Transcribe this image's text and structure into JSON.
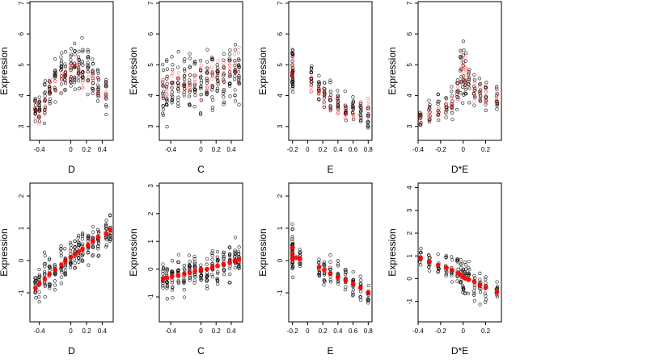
{
  "chart_data": [
    {
      "type": "scatter",
      "xlabel": "D",
      "ylabel": "Expression",
      "xlim": [
        -0.52,
        0.54
      ],
      "ylim": [
        2.55,
        7.05
      ],
      "xticks": [
        -0.4,
        0.0,
        0.2,
        0.4
      ],
      "yticks": [
        3,
        4,
        5,
        6,
        7
      ],
      "x_groups": [
        -0.45,
        -0.4,
        -0.33,
        -0.27,
        -0.2,
        -0.12,
        -0.07,
        0.0,
        0.05,
        0.1,
        0.15,
        0.22,
        0.28,
        0.35,
        0.45
      ],
      "series": [
        {
          "name": "",
          "color": "#000000",
          "marker": "open-circle",
          "cloud": {
            "y_center": [
              3.5,
              3.6,
              3.9,
              4.2,
              4.5,
              4.7,
              4.8,
              4.9,
              5.0,
              4.9,
              4.8,
              4.8,
              4.6,
              4.4,
              4.2
            ],
            "y_spread": [
              0.6,
              0.7,
              0.8,
              0.8,
              0.8,
              0.8,
              0.8,
              0.9,
              0.9,
              0.8,
              0.9,
              0.8,
              0.8,
              0.8,
              0.7
            ],
            "n": 14
          }
        },
        {
          "name": "",
          "color": "#ff0000",
          "marker": "open-circle-translucent",
          "cloud": {
            "y_center": [
              3.4,
              3.5,
              3.8,
              4.1,
              4.4,
              4.6,
              4.7,
              4.8,
              4.9,
              4.8,
              4.7,
              4.7,
              4.5,
              4.3,
              4.1
            ],
            "y_spread": [
              0.4,
              0.4,
              0.5,
              0.5,
              0.5,
              0.5,
              0.5,
              0.5,
              0.5,
              0.5,
              0.5,
              0.5,
              0.5,
              0.5,
              0.5
            ],
            "n": 5
          }
        }
      ]
    },
    {
      "type": "scatter",
      "xlabel": "C",
      "ylabel": "Expression",
      "xlim": [
        -0.55,
        0.55
      ],
      "ylim": [
        2.55,
        7.05
      ],
      "xticks": [
        -0.4,
        0.0,
        0.2,
        0.4
      ],
      "yticks": [
        3,
        4,
        5,
        6,
        7
      ],
      "x_groups": [
        -0.5,
        -0.45,
        -0.38,
        -0.3,
        -0.22,
        -0.15,
        -0.08,
        0.0,
        0.08,
        0.15,
        0.22,
        0.3,
        0.38,
        0.45,
        0.5
      ],
      "series": [
        {
          "name": "",
          "color": "#000000",
          "marker": "open-circle",
          "cloud": {
            "y_center": [
              4.2,
              4.2,
              4.3,
              4.3,
              4.3,
              4.4,
              4.4,
              4.4,
              4.5,
              4.5,
              4.5,
              4.6,
              4.6,
              4.7,
              4.7
            ],
            "y_spread": [
              1.1,
              1.1,
              1.1,
              1.1,
              1.1,
              1.1,
              1.1,
              1.1,
              1.1,
              1.1,
              1.1,
              1.1,
              1.1,
              1.1,
              1.1
            ],
            "n": 14
          }
        },
        {
          "name": "",
          "color": "#ff0000",
          "marker": "open-circle-translucent",
          "cloud": {
            "y_center": [
              4.3,
              4.3,
              4.4,
              4.4,
              4.4,
              4.5,
              4.5,
              4.5,
              4.6,
              4.6,
              4.7,
              4.7,
              4.8,
              4.9,
              5.0
            ],
            "y_spread": [
              0.6,
              0.6,
              0.6,
              0.6,
              0.6,
              0.6,
              0.6,
              0.6,
              0.6,
              0.6,
              0.6,
              0.6,
              0.6,
              0.6,
              0.6
            ],
            "n": 5
          }
        }
      ]
    },
    {
      "type": "scatter",
      "xlabel": "E",
      "ylabel": "Expression",
      "xlim": [
        -0.25,
        0.85
      ],
      "ylim": [
        2.55,
        7.05
      ],
      "xticks": [
        -0.2,
        0.0,
        0.2,
        0.4,
        0.6,
        0.8
      ],
      "yticks": [
        3,
        4,
        5,
        6,
        7
      ],
      "x_groups": [
        -0.2,
        -0.2,
        -0.2,
        0.05,
        0.15,
        0.22,
        0.3,
        0.4,
        0.5,
        0.6,
        0.7,
        0.8
      ],
      "series": [
        {
          "name": "",
          "color": "#000000",
          "marker": "open-circle",
          "cloud": {
            "y_center": [
              4.9,
              4.7,
              4.5,
              4.4,
              4.2,
              4.0,
              3.9,
              3.7,
              3.6,
              3.5,
              3.4,
              3.3
            ],
            "y_spread": [
              0.9,
              0.9,
              0.9,
              0.6,
              0.6,
              0.6,
              0.6,
              0.5,
              0.5,
              0.5,
              0.5,
              0.5
            ],
            "n": 12
          }
        },
        {
          "name": "",
          "color": "#ff0000",
          "marker": "open-circle-translucent",
          "cloud": {
            "y_center": [
              5.0,
              4.8,
              4.6,
              4.3,
              4.1,
              3.9,
              3.8,
              3.6,
              3.5,
              3.5,
              3.5,
              3.6
            ],
            "y_spread": [
              0.6,
              0.6,
              0.6,
              0.4,
              0.4,
              0.4,
              0.4,
              0.4,
              0.4,
              0.4,
              0.4,
              0.4
            ],
            "n": 6
          }
        }
      ]
    },
    {
      "type": "scatter",
      "xlabel": "D*E",
      "ylabel": "Expression",
      "xlim": [
        -0.4,
        0.34
      ],
      "ylim": [
        2.55,
        7.05
      ],
      "xticks": [
        -0.4,
        -0.2,
        0.0,
        0.2
      ],
      "yticks": [
        3,
        4,
        5,
        6,
        7
      ],
      "x_groups": [
        -0.38,
        -0.3,
        -0.22,
        -0.15,
        -0.1,
        -0.05,
        -0.02,
        0.0,
        0.02,
        0.05,
        0.1,
        0.15,
        0.2,
        0.3
      ],
      "series": [
        {
          "name": "",
          "color": "#000000",
          "marker": "open-circle",
          "cloud": {
            "y_center": [
              3.4,
              3.5,
              3.6,
              3.6,
              3.8,
              4.2,
              4.6,
              4.8,
              4.6,
              4.4,
              4.2,
              4.1,
              4.0,
              4.0
            ],
            "y_spread": [
              0.5,
              0.5,
              0.5,
              0.5,
              0.7,
              0.9,
              1.1,
              1.1,
              1.0,
              0.8,
              0.7,
              0.7,
              0.6,
              0.6
            ],
            "n": 10
          }
        },
        {
          "name": "",
          "color": "#ff0000",
          "marker": "open-circle-translucent",
          "cloud": {
            "y_center": [
              3.3,
              3.4,
              3.5,
              3.6,
              3.8,
              4.3,
              4.9,
              5.0,
              4.7,
              4.4,
              4.2,
              4.1,
              4.0,
              4.0
            ],
            "y_spread": [
              0.3,
              0.3,
              0.3,
              0.3,
              0.4,
              0.5,
              0.6,
              0.6,
              0.5,
              0.4,
              0.4,
              0.4,
              0.4,
              0.3
            ],
            "n": 6
          }
        }
      ]
    },
    {
      "type": "scatter",
      "xlabel": "D",
      "ylabel": "Expression",
      "xlim": [
        -0.52,
        0.54
      ],
      "ylim": [
        -1.9,
        2.4
      ],
      "xticks": [
        -0.4,
        0.0,
        0.2,
        0.4
      ],
      "yticks": [
        -1,
        0,
        1,
        2
      ],
      "x_groups": [
        -0.45,
        -0.4,
        -0.33,
        -0.27,
        -0.2,
        -0.12,
        -0.07,
        0.0,
        0.05,
        0.1,
        0.15,
        0.22,
        0.28,
        0.35,
        0.45,
        0.5
      ],
      "series": [
        {
          "name": "",
          "color": "#000000",
          "marker": "open-circle",
          "cloud": {
            "y_center": [
              -0.8,
              -0.7,
              -0.5,
              -0.4,
              -0.3,
              -0.1,
              0.0,
              0.1,
              0.2,
              0.3,
              0.3,
              0.5,
              0.6,
              0.6,
              0.8,
              0.9
            ],
            "y_spread": [
              0.6,
              0.7,
              0.7,
              0.7,
              0.7,
              0.7,
              0.7,
              0.7,
              0.7,
              0.7,
              0.7,
              0.7,
              0.7,
              0.6,
              0.6,
              0.6
            ],
            "n": 14
          }
        },
        {
          "name": "",
          "color": "#ff0000",
          "marker": "filled-circle-translucent",
          "points": [
            {
              "x": -0.45,
              "y": -0.85
            },
            {
              "x": -0.4,
              "y": -0.72
            },
            {
              "x": -0.33,
              "y": -0.55
            },
            {
              "x": -0.27,
              "y": -0.42
            },
            {
              "x": -0.2,
              "y": -0.28
            },
            {
              "x": -0.12,
              "y": -0.12
            },
            {
              "x": -0.07,
              "y": -0.02
            },
            {
              "x": 0.0,
              "y": 0.1
            },
            {
              "x": 0.05,
              "y": 0.2
            },
            {
              "x": 0.1,
              "y": 0.28
            },
            {
              "x": 0.15,
              "y": 0.36
            },
            {
              "x": 0.22,
              "y": 0.48
            },
            {
              "x": 0.28,
              "y": 0.6
            },
            {
              "x": 0.35,
              "y": 0.72
            },
            {
              "x": 0.45,
              "y": 0.85
            },
            {
              "x": 0.5,
              "y": 0.95
            }
          ]
        }
      ]
    },
    {
      "type": "scatter",
      "xlabel": "C",
      "ylabel": "Expression",
      "xlim": [
        -0.55,
        0.55
      ],
      "ylim": [
        -1.9,
        3.1
      ],
      "xticks": [
        -0.4,
        0.0,
        0.2,
        0.4
      ],
      "yticks": [
        -1,
        0,
        1,
        2,
        3
      ],
      "x_groups": [
        -0.5,
        -0.45,
        -0.38,
        -0.3,
        -0.22,
        -0.15,
        -0.08,
        0.0,
        0.08,
        0.15,
        0.22,
        0.3,
        0.38,
        0.45,
        0.5
      ],
      "series": [
        {
          "name": "",
          "color": "#000000",
          "marker": "open-circle",
          "cloud": {
            "y_center": [
              -0.3,
              -0.3,
              -0.3,
              -0.2,
              -0.2,
              -0.1,
              -0.1,
              0.0,
              0.0,
              0.1,
              0.1,
              0.2,
              0.2,
              0.3,
              0.3
            ],
            "y_spread": [
              0.7,
              0.7,
              0.7,
              0.7,
              0.7,
              0.7,
              0.7,
              0.7,
              0.7,
              0.7,
              0.7,
              0.7,
              0.7,
              0.7,
              0.7
            ],
            "n": 14
          }
        },
        {
          "name": "",
          "color": "#ff0000",
          "marker": "filled-circle-translucent",
          "points": [
            {
              "x": -0.5,
              "y": -0.35
            },
            {
              "x": -0.45,
              "y": -0.3
            },
            {
              "x": -0.38,
              "y": -0.27
            },
            {
              "x": -0.3,
              "y": -0.22
            },
            {
              "x": -0.22,
              "y": -0.18
            },
            {
              "x": -0.15,
              "y": -0.12
            },
            {
              "x": -0.08,
              "y": -0.08
            },
            {
              "x": 0.0,
              "y": -0.03
            },
            {
              "x": 0.08,
              "y": 0.02
            },
            {
              "x": 0.15,
              "y": 0.07
            },
            {
              "x": 0.22,
              "y": 0.12
            },
            {
              "x": 0.3,
              "y": 0.18
            },
            {
              "x": 0.38,
              "y": 0.24
            },
            {
              "x": 0.45,
              "y": 0.3
            },
            {
              "x": 0.5,
              "y": 0.33
            }
          ]
        }
      ]
    },
    {
      "type": "scatter",
      "xlabel": "E",
      "ylabel": "Expression",
      "xlim": [
        -0.25,
        0.85
      ],
      "ylim": [
        -1.9,
        2.4
      ],
      "xticks": [
        -0.2,
        0.0,
        0.2,
        0.4,
        0.6,
        0.8
      ],
      "yticks": [
        -1,
        0,
        1,
        2
      ],
      "x_groups": [
        -0.2,
        -0.2,
        -0.2,
        -0.1,
        0.15,
        0.22,
        0.3,
        0.4,
        0.5,
        0.6,
        0.7,
        0.8
      ],
      "series": [
        {
          "name": "",
          "color": "#000000",
          "marker": "open-circle",
          "cloud": {
            "y_center": [
              0.3,
              0.2,
              0.1,
              0.0,
              -0.2,
              -0.3,
              -0.4,
              -0.5,
              -0.6,
              -0.7,
              -0.8,
              -0.9
            ],
            "y_spread": [
              1.0,
              1.0,
              1.0,
              0.6,
              0.6,
              0.6,
              0.6,
              0.5,
              0.5,
              0.5,
              0.5,
              0.5
            ],
            "n": 12
          }
        },
        {
          "name": "",
          "color": "#ff0000",
          "marker": "filled-circle-translucent",
          "points": [
            {
              "x": -0.2,
              "y": 0.4
            },
            {
              "x": -0.2,
              "y": 0.2
            },
            {
              "x": -0.2,
              "y": 0.05
            },
            {
              "x": -0.15,
              "y": 0.1
            },
            {
              "x": -0.1,
              "y": 0.05
            },
            {
              "x": 0.15,
              "y": -0.2
            },
            {
              "x": 0.22,
              "y": -0.28
            },
            {
              "x": 0.3,
              "y": -0.38
            },
            {
              "x": 0.4,
              "y": -0.5
            },
            {
              "x": 0.5,
              "y": -0.62
            },
            {
              "x": 0.6,
              "y": -0.72
            },
            {
              "x": 0.7,
              "y": -0.85
            },
            {
              "x": 0.8,
              "y": -0.98
            }
          ]
        }
      ]
    },
    {
      "type": "scatter",
      "xlabel": "D*E",
      "ylabel": "Expression",
      "xlim": [
        -0.4,
        0.34
      ],
      "ylim": [
        -1.9,
        4.2
      ],
      "xticks": [
        -0.4,
        -0.2,
        0.0,
        0.2
      ],
      "yticks": [
        -1,
        0,
        1,
        2,
        3,
        4
      ],
      "x_groups": [
        -0.38,
        -0.3,
        -0.22,
        -0.15,
        -0.1,
        -0.05,
        -0.02,
        0.0,
        0.02,
        0.05,
        0.1,
        0.15,
        0.2,
        0.3
      ],
      "series": [
        {
          "name": "",
          "color": "#000000",
          "marker": "open-circle",
          "cloud": {
            "y_center": [
              0.9,
              0.8,
              0.7,
              0.6,
              0.5,
              0.3,
              0.2,
              0.1,
              0.0,
              -0.1,
              -0.2,
              -0.3,
              -0.4,
              -0.5
            ],
            "y_spread": [
              0.6,
              0.6,
              0.6,
              0.6,
              0.7,
              0.9,
              1.1,
              1.2,
              1.1,
              0.9,
              0.8,
              0.7,
              0.6,
              0.6
            ],
            "n": 10
          }
        },
        {
          "name": "",
          "color": "#ff0000",
          "marker": "filled-circle-translucent",
          "points": [
            {
              "x": -0.38,
              "y": 0.9
            },
            {
              "x": -0.3,
              "y": 0.75
            },
            {
              "x": -0.22,
              "y": 0.6
            },
            {
              "x": -0.15,
              "y": 0.48
            },
            {
              "x": -0.1,
              "y": 0.38
            },
            {
              "x": -0.05,
              "y": 0.25
            },
            {
              "x": -0.02,
              "y": 0.15
            },
            {
              "x": 0.0,
              "y": 0.08
            },
            {
              "x": 0.02,
              "y": 0.02
            },
            {
              "x": 0.05,
              "y": -0.05
            },
            {
              "x": 0.1,
              "y": -0.15
            },
            {
              "x": 0.15,
              "y": -0.28
            },
            {
              "x": 0.2,
              "y": -0.38
            },
            {
              "x": 0.3,
              "y": -0.6
            }
          ]
        }
      ]
    }
  ]
}
